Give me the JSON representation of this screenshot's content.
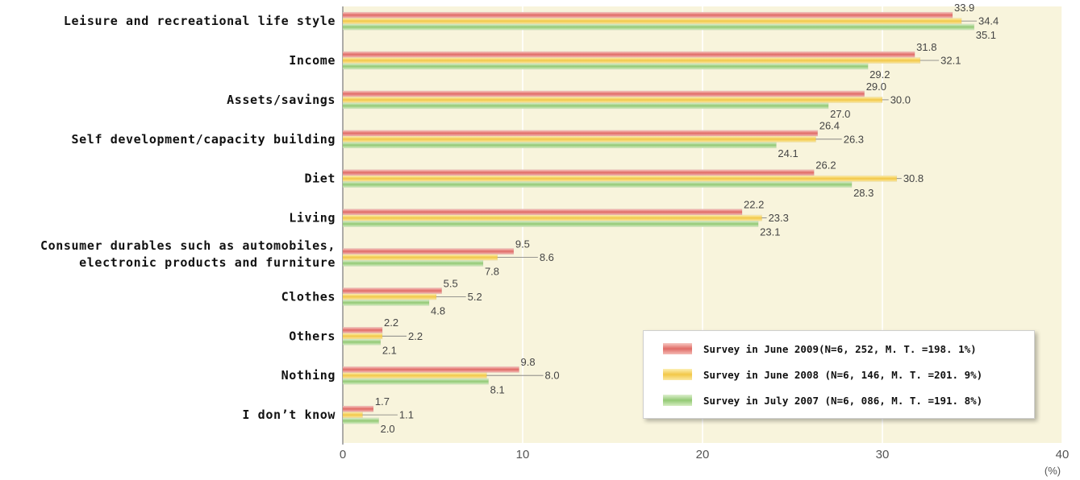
{
  "chart_data": {
    "type": "bar",
    "orientation": "horizontal",
    "categories": [
      [
        "Leisure and recreational life style"
      ],
      [
        "Income"
      ],
      [
        "Assets/savings"
      ],
      [
        "Self development/capacity building"
      ],
      [
        "Diet"
      ],
      [
        "Living"
      ],
      [
        "Consumer durables such as automobiles,",
        "electronic products and furniture"
      ],
      [
        "Clothes"
      ],
      [
        "Others"
      ],
      [
        "Nothing"
      ],
      [
        "I don’t know"
      ]
    ],
    "series": [
      {
        "name": "Survey in June 2009(N=6, 252, M. T. =198. 1%)",
        "color": "#e57373",
        "values": [
          33.9,
          31.8,
          29.0,
          26.4,
          26.2,
          22.2,
          9.5,
          5.5,
          2.2,
          9.8,
          1.7
        ]
      },
      {
        "name": "Survey in June 2008 (N=6, 146, M. T. =201. 9%)",
        "color": "#f5cf55",
        "values": [
          34.4,
          32.1,
          30.0,
          26.3,
          30.8,
          23.3,
          8.6,
          5.2,
          2.2,
          8.0,
          1.1
        ]
      },
      {
        "name": "Survey in July 2007 (N=6, 086, M. T. =191. 8%)",
        "color": "#9ed07f",
        "values": [
          35.1,
          29.2,
          27.0,
          24.1,
          28.3,
          23.1,
          7.8,
          4.8,
          2.1,
          8.1,
          2.0
        ]
      }
    ],
    "xlim": [
      0,
      40
    ],
    "xticks": [
      "0",
      "10",
      "20",
      "30",
      "40"
    ],
    "xunit": "(%)",
    "grid": true,
    "background": "#f8f4dc",
    "legend_position": "bottom-right"
  }
}
